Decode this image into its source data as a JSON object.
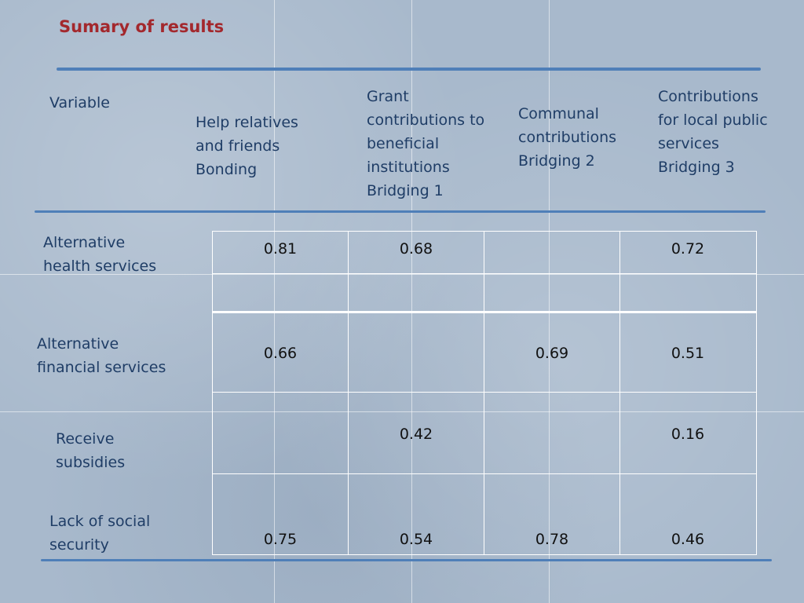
{
  "slide": {
    "title": "Sumary of results"
  },
  "table": {
    "variable_header": "Variable",
    "columns": [
      {
        "lines": [
          "Help relatives",
          "and friends",
          "Bonding"
        ]
      },
      {
        "lines": [
          "Grant",
          "contributions to",
          "beneficial",
          "institutions",
          "Bridging 1"
        ]
      },
      {
        "lines": [
          "Communal",
          "contributions",
          "Bridging 2"
        ]
      },
      {
        "lines": [
          "Contributions",
          "for local public",
          "services",
          "Bridging 3"
        ]
      }
    ],
    "rows": [
      {
        "label_lines": [
          "Alternative",
          "health services"
        ],
        "values": [
          "0.81",
          "0.68",
          "",
          "0.72"
        ]
      },
      {
        "label_lines": [
          "Alternative",
          "financial services"
        ],
        "values": [
          "0.66",
          "",
          "0.69",
          "0.51"
        ]
      },
      {
        "label_lines": [
          "Receive",
          "subsidies"
        ],
        "values": [
          "",
          "0.42",
          "",
          "0.16"
        ]
      },
      {
        "label_lines": [
          "Lack of social",
          "security"
        ],
        "values": [
          "0.75",
          "0.54",
          "0.78",
          "0.46"
        ]
      }
    ]
  }
}
